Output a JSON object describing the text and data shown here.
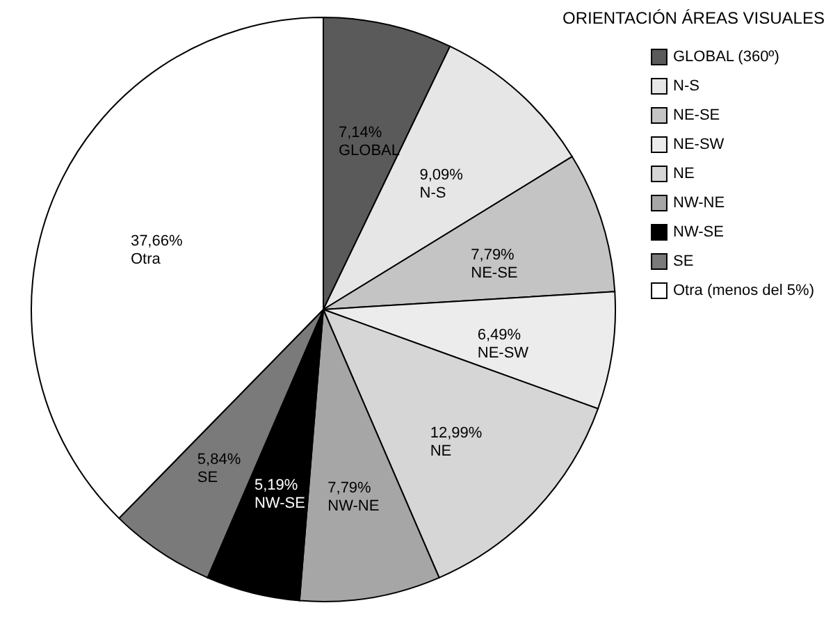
{
  "chart_data": {
    "type": "pie",
    "legend_title": "ORIENTACIÓN ÁREAS VISUALES",
    "categories": [
      "GLOBAL (360º)",
      "N-S",
      "NE-SE",
      "NE-SW",
      "NE",
      "NW-NE",
      "NW-SE",
      "SE",
      "Otra (menos del 5%)"
    ],
    "values": [
      7.14,
      9.09,
      7.79,
      6.49,
      12.99,
      7.79,
      5.19,
      5.84,
      37.66
    ],
    "colors": [
      "#5a5a5a",
      "#e6e6e6",
      "#c4c4c4",
      "#ececec",
      "#d6d6d6",
      "#a6a6a6",
      "#000000",
      "#7a7a7a",
      "#ffffff"
    ],
    "value_labels": [
      "7,14%\nGLOBAL",
      "9,09%\nN-S",
      "7,79%\nNE-SE",
      "6,49%\nNE-SW",
      "12,99%\nNE",
      "7,79%\nNW-NE",
      "5,19%\nNW-SE",
      "5,84%\nSE",
      "37,66%\nOtra"
    ],
    "legend": "right"
  }
}
